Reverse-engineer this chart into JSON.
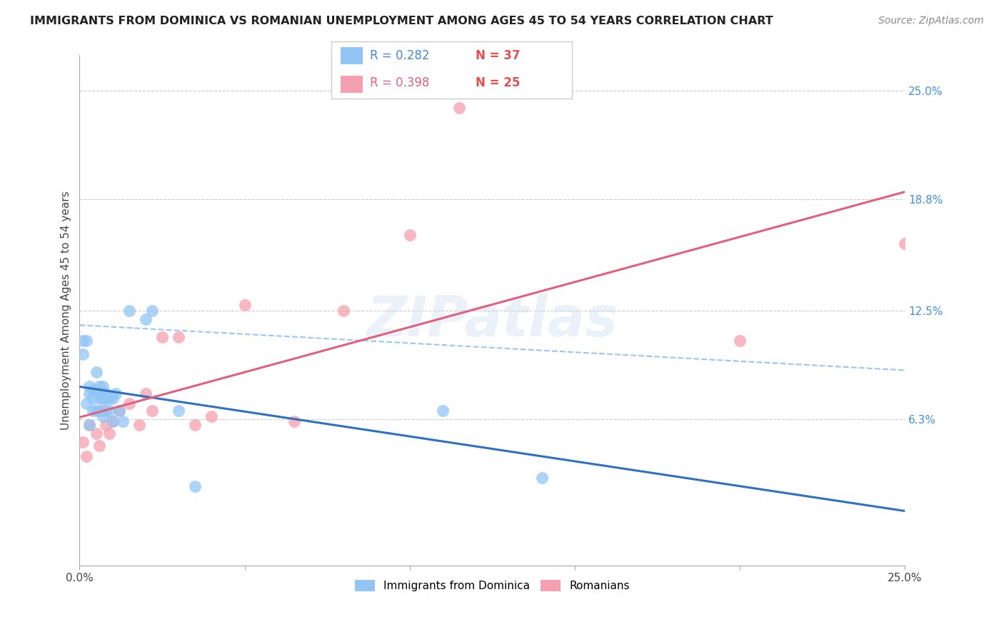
{
  "title": "IMMIGRANTS FROM DOMINICA VS ROMANIAN UNEMPLOYMENT AMONG AGES 45 TO 54 YEARS CORRELATION CHART",
  "source": "Source: ZipAtlas.com",
  "ylabel": "Unemployment Among Ages 45 to 54 years",
  "xlim": [
    0.0,
    0.25
  ],
  "ylim": [
    -0.02,
    0.27
  ],
  "xticks": [
    0.0,
    0.05,
    0.1,
    0.15,
    0.2,
    0.25
  ],
  "xticklabels": [
    "0.0%",
    "",
    "",
    "",
    "",
    "25.0%"
  ],
  "ytick_labels_right": [
    "25.0%",
    "18.8%",
    "12.5%",
    "6.3%"
  ],
  "ytick_values_right": [
    0.25,
    0.188,
    0.125,
    0.063
  ],
  "watermark": "ZIPatlas",
  "legend_r1": "R = 0.282",
  "legend_n1": "N = 37",
  "legend_r2": "R = 0.398",
  "legend_n2": "N = 25",
  "dominica_color": "#92C5F5",
  "romanian_color": "#F5A0B0",
  "dominica_line_color": "#3070C0",
  "romanian_line_color": "#E06080",
  "dominica_dashed_color": "#88BBEE",
  "background_color": "#ffffff",
  "grid_color": "#cccccc",
  "dom_x": [
    0.001,
    0.001,
    0.002,
    0.002,
    0.003,
    0.003,
    0.003,
    0.004,
    0.004,
    0.004,
    0.005,
    0.005,
    0.005,
    0.006,
    0.006,
    0.006,
    0.007,
    0.007,
    0.007,
    0.007,
    0.008,
    0.008,
    0.008,
    0.009,
    0.009,
    0.01,
    0.01,
    0.011,
    0.012,
    0.013,
    0.015,
    0.02,
    0.022,
    0.03,
    0.035,
    0.11,
    0.14
  ],
  "dom_y": [
    0.1,
    0.108,
    0.108,
    0.072,
    0.078,
    0.082,
    0.06,
    0.08,
    0.075,
    0.068,
    0.09,
    0.08,
    0.068,
    0.082,
    0.075,
    0.068,
    0.082,
    0.078,
    0.075,
    0.065,
    0.078,
    0.075,
    0.068,
    0.075,
    0.068,
    0.075,
    0.062,
    0.078,
    0.068,
    0.062,
    0.125,
    0.12,
    0.125,
    0.068,
    0.025,
    0.068,
    0.03
  ],
  "rom_x": [
    0.001,
    0.002,
    0.003,
    0.005,
    0.006,
    0.007,
    0.008,
    0.009,
    0.01,
    0.012,
    0.015,
    0.018,
    0.02,
    0.022,
    0.025,
    0.03,
    0.035,
    0.04,
    0.05,
    0.065,
    0.08,
    0.1,
    0.115,
    0.2,
    0.25
  ],
  "rom_y": [
    0.05,
    0.042,
    0.06,
    0.055,
    0.048,
    0.068,
    0.06,
    0.055,
    0.062,
    0.068,
    0.072,
    0.06,
    0.078,
    0.068,
    0.11,
    0.11,
    0.06,
    0.065,
    0.128,
    0.062,
    0.125,
    0.168,
    0.24,
    0.108,
    0.163
  ]
}
